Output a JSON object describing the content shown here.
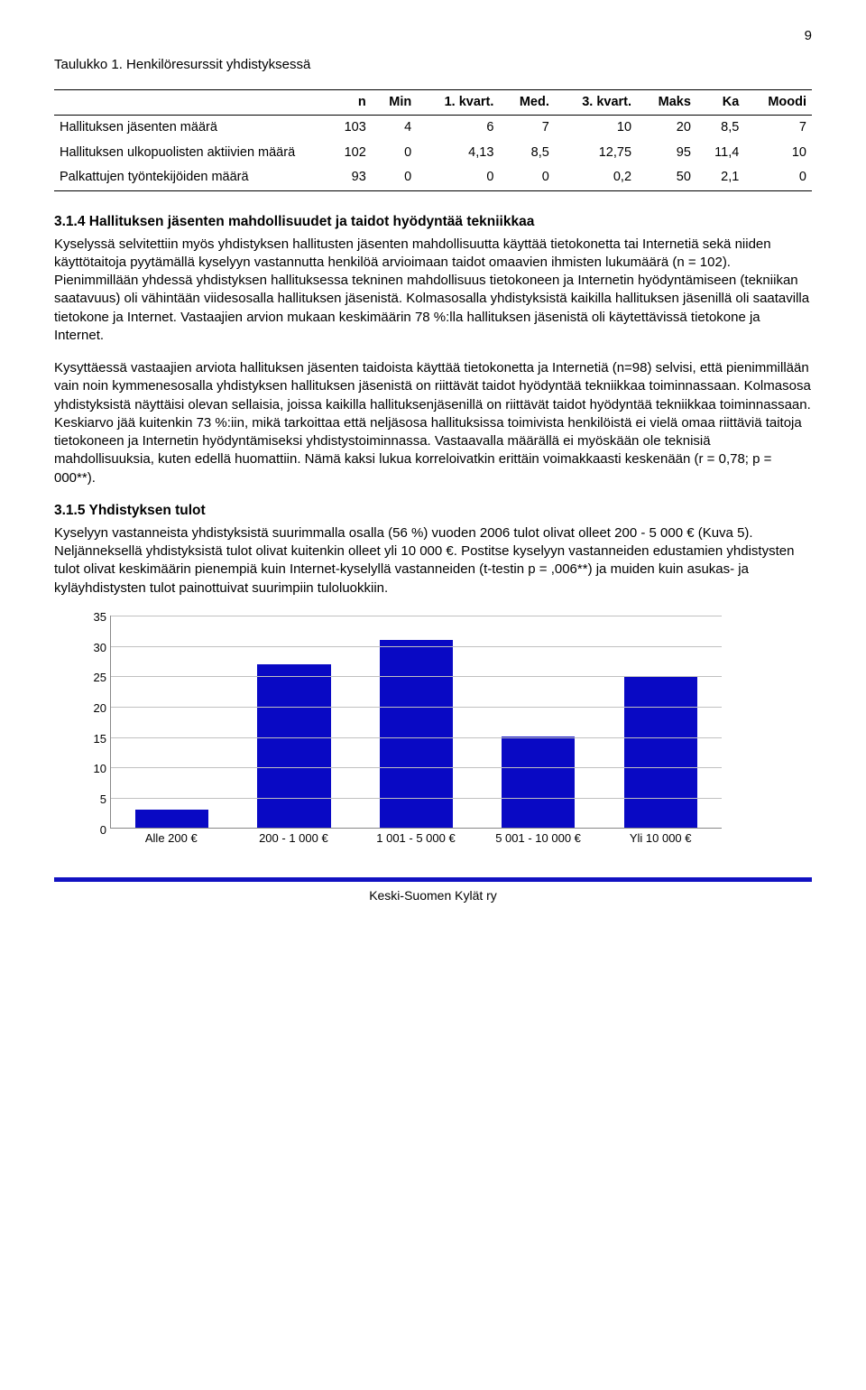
{
  "page_number": "9",
  "table_caption": "Taulukko 1. Henkilöresurssit yhdistyksessä",
  "table": {
    "columns": [
      "",
      "n",
      "Min",
      "1. kvart.",
      "Med.",
      "3. kvart.",
      "Maks",
      "Ka",
      "Moodi"
    ],
    "rows": [
      [
        "Hallituksen jäsenten määrä",
        "103",
        "4",
        "6",
        "7",
        "10",
        "20",
        "8,5",
        "7"
      ],
      [
        "Hallituksen ulkopuolisten aktiivien määrä",
        "102",
        "0",
        "4,13",
        "8,5",
        "12,75",
        "95",
        "11,4",
        "10"
      ],
      [
        "Palkattujen työntekijöiden määrä",
        "93",
        "0",
        "0",
        "0",
        "0,2",
        "50",
        "2,1",
        "0"
      ]
    ]
  },
  "section1": {
    "heading": "3.1.4  Hallituksen jäsenten mahdollisuudet ja taidot hyödyntää tekniikkaa",
    "para1": "Kyselyssä selvitettiin myös yhdistyksen hallitusten jäsenten mahdollisuutta käyttää tietokonetta tai Internetiä sekä niiden käyttötaitoja pyytämällä kyselyyn vastannutta henkilöä arvioimaan taidot omaavien ihmisten lukumäärä (n = 102). Pienimmillään yhdessä yhdistyksen hallituksessa tekninen mahdollisuus tietokoneen ja Internetin hyödyntämiseen (tekniikan saatavuus) oli vähintään viidesosalla hallituksen jäsenistä. Kolmasosalla yhdistyksistä kaikilla hallituksen jäsenillä oli saatavilla tietokone ja Internet. Vastaajien arvion mukaan keskimäärin 78 %:lla hallituksen jäsenistä oli käytettävissä tietokone ja Internet.",
    "para2": "Kysyttäessä vastaajien arviota hallituksen jäsenten taidoista käyttää tietokonetta ja Internetiä (n=98) selvisi, että pienimmillään vain noin kymmenesosalla yhdistyksen hallituksen jäsenistä on riittävät taidot hyödyntää tekniikkaa toiminnassaan. Kolmasosa yhdistyksistä näyttäisi olevan sellaisia, joissa kaikilla hallituksenjäsenillä on riittävät taidot hyödyntää tekniikkaa toiminnassaan. Keskiarvo jää kuitenkin 73 %:iin, mikä tarkoittaa että neljäsosa hallituksissa toimivista henkilöistä ei vielä omaa riittäviä taitoja tietokoneen ja Internetin hyödyntämiseksi yhdistystoiminnassa. Vastaavalla määrällä ei myöskään ole teknisiä mahdollisuuksia, kuten edellä huomattiin. Nämä kaksi lukua korreloivatkin erittäin voimakkaasti keskenään (r = 0,78; p = 000**)."
  },
  "section2": {
    "heading": "3.1.5  Yhdistyksen tulot",
    "para1": "Kyselyyn vastanneista yhdistyksistä suurimmalla osalla (56 %) vuoden 2006 tulot olivat olleet 200 - 5 000 € (Kuva 5). Neljänneksellä yhdistyksistä tulot olivat kuitenkin olleet yli 10 000 €. Postitse kyselyyn vastanneiden edustamien yhdistysten tulot olivat keskimäärin pienempiä kuin Internet-kyselyllä vastanneiden (t-testin p = ,006**) ja muiden kuin asukas- ja kyläyhdistysten tulot painottuivat suurimpiin tuloluokkiin."
  },
  "chart": {
    "type": "bar",
    "ymax": 35,
    "ytick_step": 5,
    "yticks": [
      0,
      5,
      10,
      15,
      20,
      25,
      30,
      35
    ],
    "categories": [
      "Alle 200 €",
      "200 - 1 000 €",
      "1 001 - 5 000 €",
      "5 001 - 10 000 €",
      "Yli 10 000 €"
    ],
    "values": [
      3,
      27,
      31,
      15,
      25
    ],
    "bar_color": "#0909c4",
    "grid_color": "#c0c0c0",
    "axis_color": "#888888",
    "background_color": "#ffffff",
    "label_fontsize": 13
  },
  "footer": {
    "rule_color": "#1212c2",
    "text": "Keski-Suomen Kylät ry"
  }
}
